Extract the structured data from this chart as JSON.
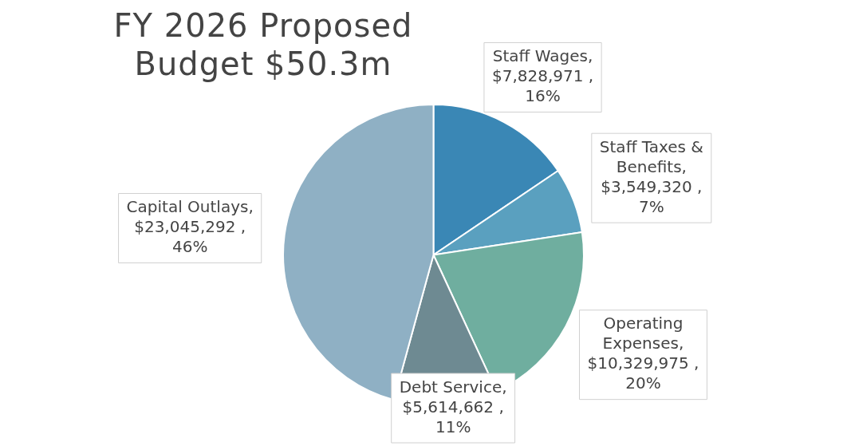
{
  "chart_data": {
    "type": "pie",
    "title": "FY 2026 Proposed Budget $50.3m",
    "categories": [
      "Staff Wages",
      "Staff Taxes & Benefits",
      "Operating Expenses",
      "Debt Service",
      "Capital Outlays"
    ],
    "values": [
      7828971,
      3549320,
      10329975,
      5614662,
      23045292
    ],
    "colors": [
      "#3a87b5",
      "#5aa0bf",
      "#6fae9f",
      "#6e8a92",
      "#8fb0c4"
    ],
    "value_labels": [
      ", $7,828,971 , 16%",
      ", $3,549,320 , 7%",
      ", $10,329,975 , 20%",
      ", $5,614,662 , 11%",
      ", $23,045,292 , 46%"
    ],
    "legend": false
  }
}
